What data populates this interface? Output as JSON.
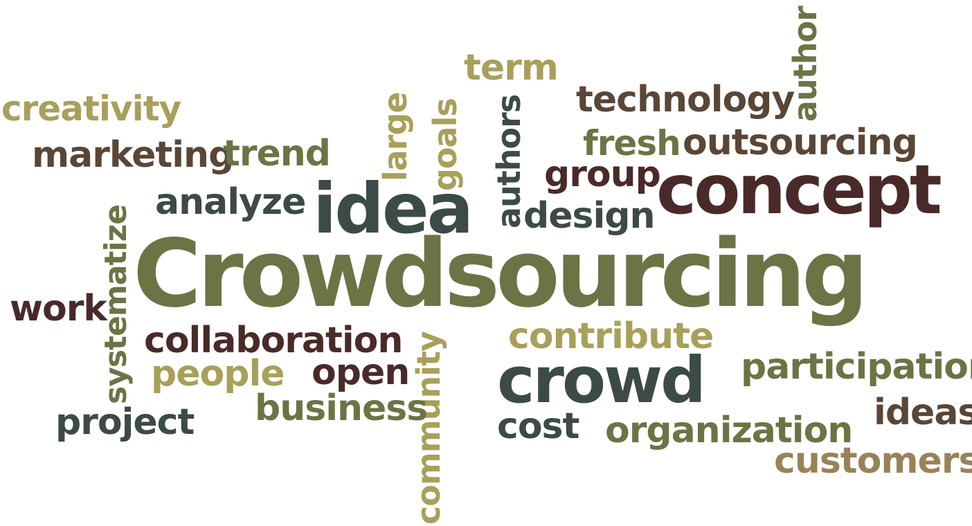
{
  "colors": {
    "background": "#ffffff",
    "olive": "#6b7445",
    "khaki": "#a8a05a",
    "brown": "#5a4636",
    "maroon": "#4a2a28",
    "slate": "#3c4a48",
    "tan": "#9a8258"
  },
  "words": {
    "crowdsourcing": "Crowdsourcing",
    "concept": "concept",
    "idea": "idea",
    "crowd": "crowd",
    "author": "author",
    "term": "term",
    "technology": "technology",
    "creativity": "creativity",
    "fresh": "fresh",
    "outsourcing": "outsourcing",
    "marketing": "marketing",
    "trend": "trend",
    "large": "large",
    "goals": "goals",
    "authors": "authors",
    "group": "group",
    "analyze": "analyze",
    "design": "design",
    "systematize": "systematize",
    "work": "work",
    "collaboration": "collaboration",
    "contribute": "contribute",
    "people": "people",
    "open": "open",
    "community": "community",
    "participation": "participation",
    "business": "business",
    "project": "project",
    "cost": "cost",
    "organization": "organization",
    "ideas": "ideas",
    "customers": "customers"
  }
}
